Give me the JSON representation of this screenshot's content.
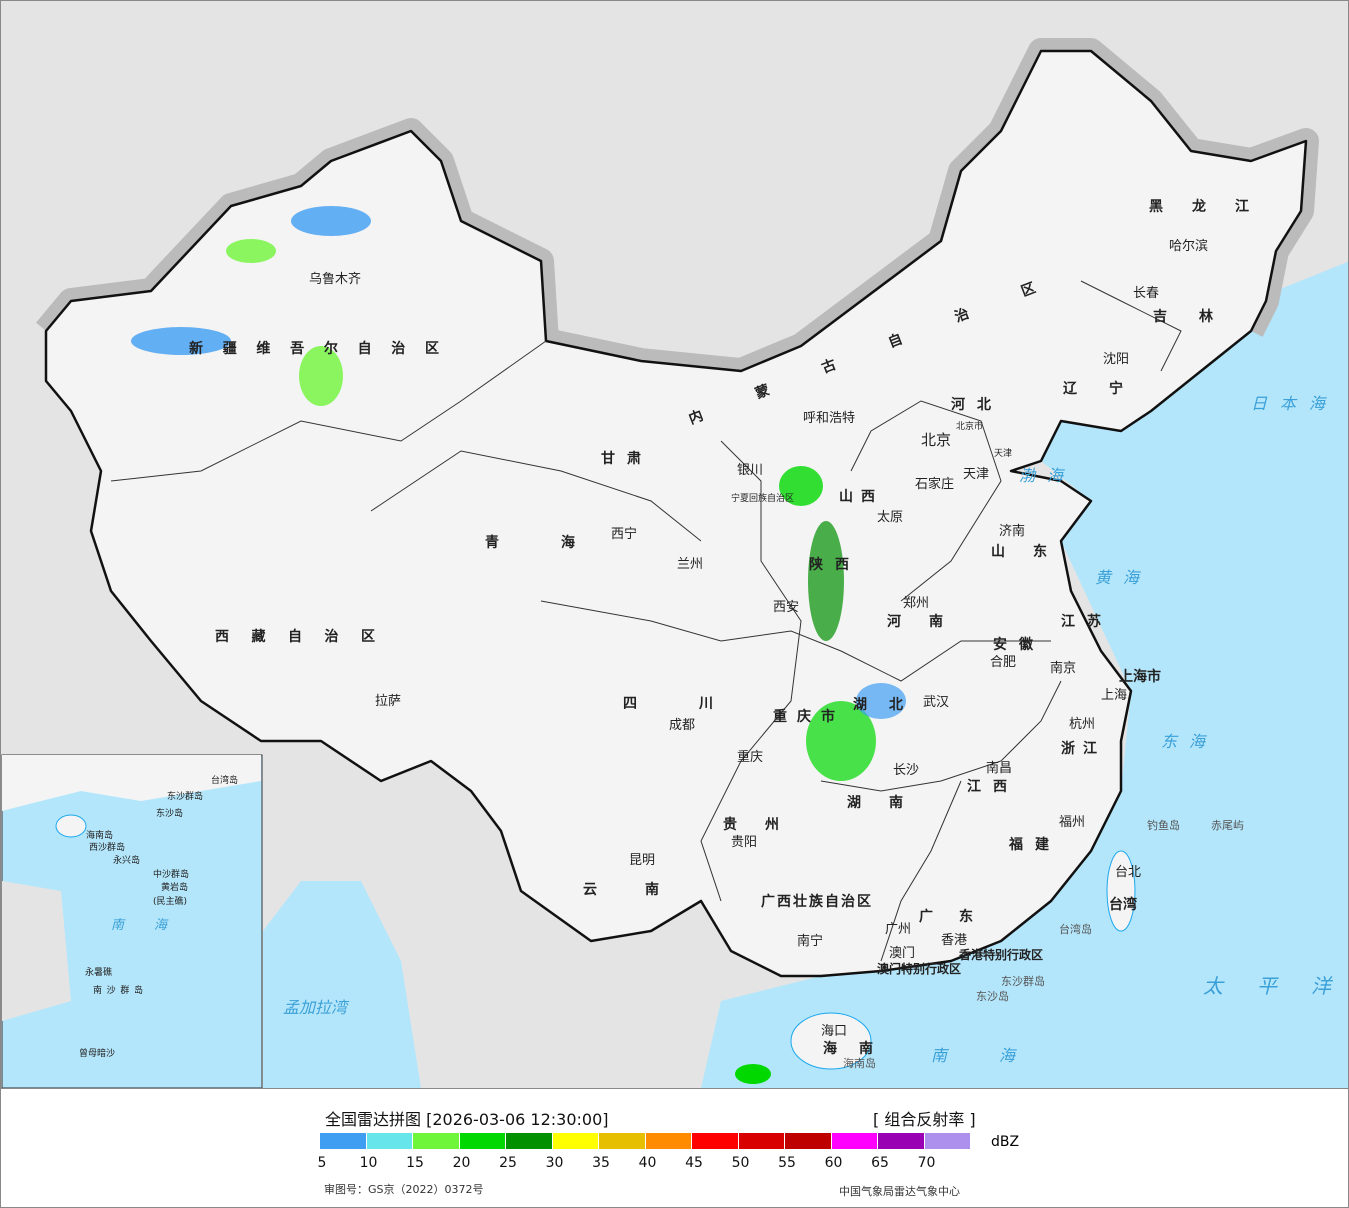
{
  "map": {
    "provinces": [
      "新疆维吾尔自治区",
      "西藏自治区",
      "青海",
      "甘肃",
      "内蒙古自治区",
      "黑龙江",
      "吉林",
      "辽宁",
      "河北",
      "山西",
      "陕西",
      "河南",
      "山东",
      "江苏",
      "安徽",
      "湖北",
      "四川",
      "重庆市",
      "贵州",
      "云南",
      "湖南",
      "江西",
      "浙江",
      "福建",
      "广东",
      "广西壮族自治区",
      "海南",
      "台湾",
      "宁夏回族自治区",
      "北京市",
      "天津",
      "上海市",
      "香港特别行政区",
      "澳门特别行政区"
    ],
    "cities": [
      "乌鲁木齐",
      "拉萨",
      "西宁",
      "兰州",
      "银川",
      "呼和浩特",
      "北京",
      "天津",
      "石家庄",
      "太原",
      "济南",
      "郑州",
      "西安",
      "成都",
      "重庆",
      "武汉",
      "合肥",
      "南京",
      "上海",
      "杭州",
      "长沙",
      "南昌",
      "福州",
      "台北",
      "贵阳",
      "昆明",
      "南宁",
      "广州",
      "澳门",
      "香港",
      "海口",
      "哈尔滨",
      "长春",
      "沈阳"
    ],
    "seas": [
      "渤海",
      "黄海",
      "东海",
      "日本海",
      "太平洋",
      "南海",
      "孟加拉湾"
    ],
    "islands": [
      "钓鱼岛",
      "赤尾屿",
      "台湾岛",
      "东沙群岛",
      "东沙岛",
      "海南岛"
    ],
    "inset_labels": [
      "西沙群岛",
      "永兴岛",
      "中沙群岛",
      "黄岩岛",
      "(民主礁)",
      "南海",
      "永暑礁",
      "南沙群岛",
      "曾母暗沙",
      "台湾岛",
      "东沙群岛",
      "东沙岛",
      "海南岛"
    ],
    "colors": {
      "land": "#f4f4f4",
      "sea": "#b4e6fb",
      "outside": "#e4e4e4",
      "border": "#111111",
      "river": "#1aa7ee"
    }
  },
  "legend": {
    "title": "全国雷达拼图 [2026-03-06 12:30:00]",
    "product": "[ 组合反射率 ]",
    "unit": "dBZ",
    "colors": [
      "#3f9ef2",
      "#66e5ea",
      "#6ff53a",
      "#00d800",
      "#009000",
      "#ffff00",
      "#e6c000",
      "#ff8c00",
      "#ff0000",
      "#d80000",
      "#bf0000",
      "#ff00ff",
      "#9900b4",
      "#ad90ee"
    ],
    "ticks": [
      "5",
      "10",
      "15",
      "20",
      "25",
      "30",
      "35",
      "40",
      "45",
      "50",
      "55",
      "60",
      "65",
      "70"
    ],
    "approval": "审图号：GS京（2022）0372号",
    "organization": "中国气象局雷达气象中心"
  }
}
